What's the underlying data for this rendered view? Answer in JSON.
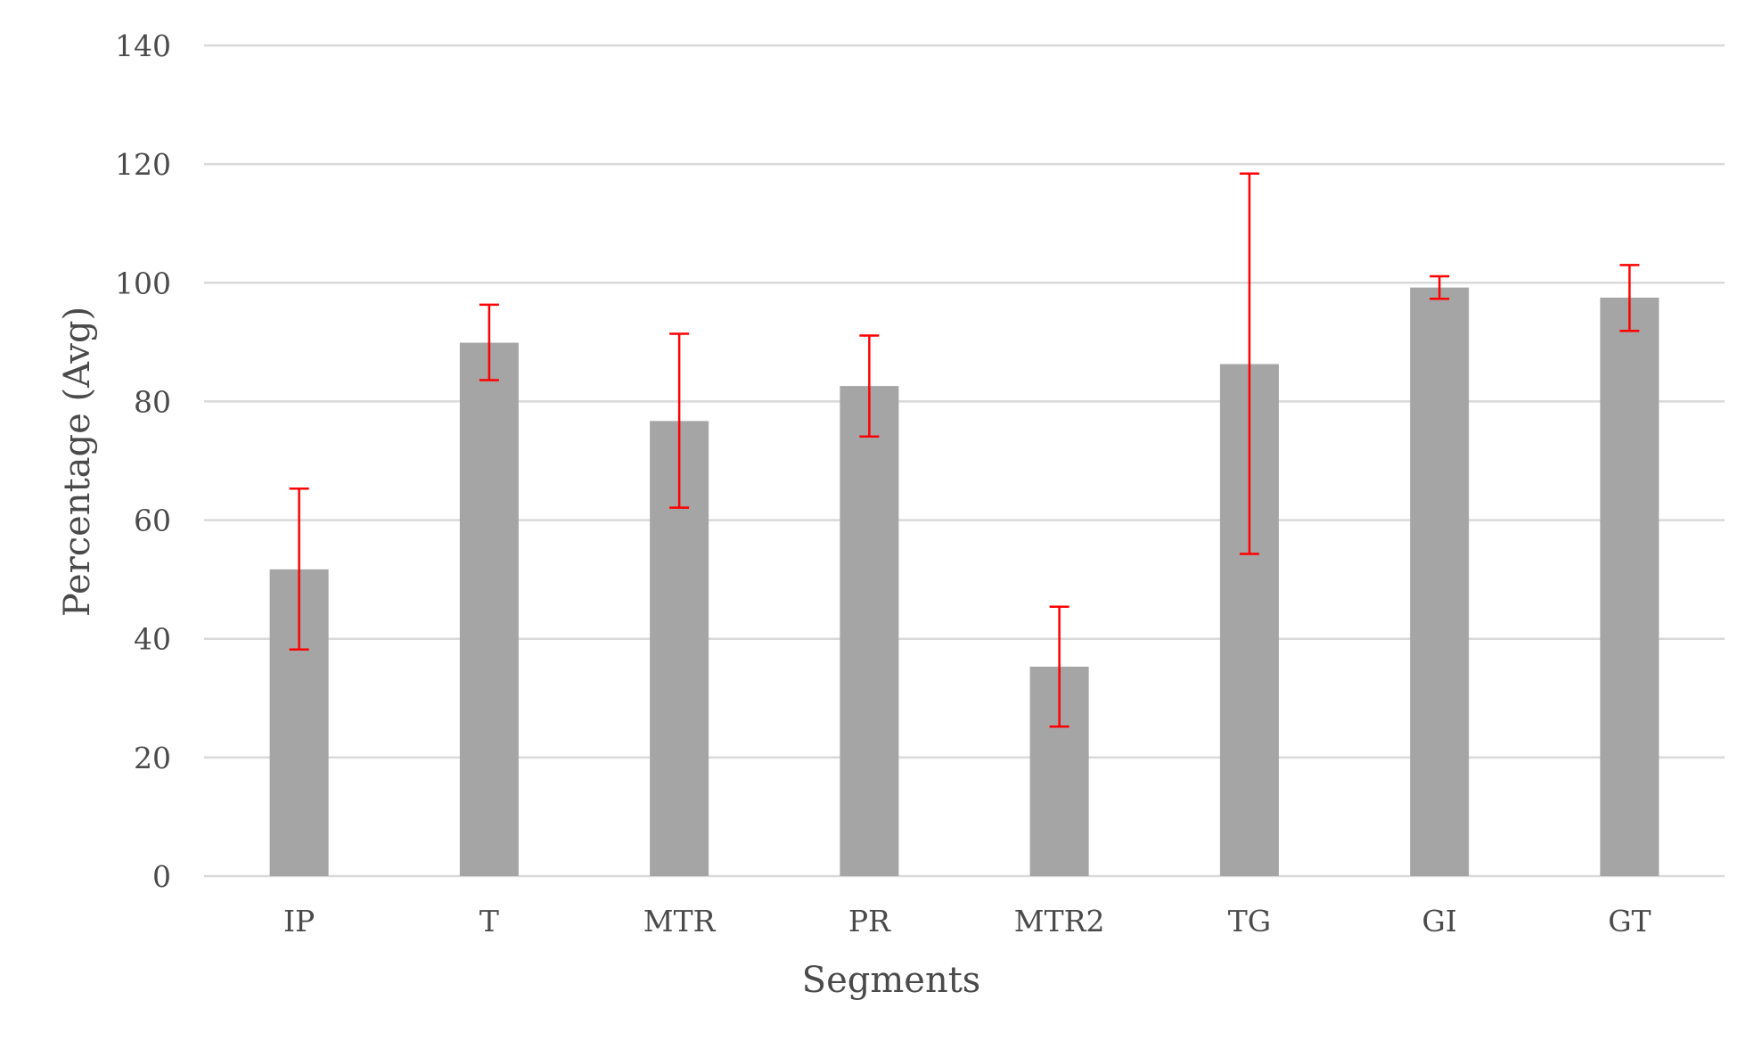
{
  "chart_data": {
    "type": "bar",
    "title": "",
    "xlabel": "Segments",
    "ylabel": "Percentage (Avg)",
    "ylim": [
      0,
      140
    ],
    "yticks": [
      0,
      20,
      40,
      60,
      80,
      100,
      120,
      140
    ],
    "grid": true,
    "legend": "none",
    "colors": {
      "bar": "#a5a5a5",
      "error_bar": "#ff0000",
      "grid": "#d9d9d9",
      "text": "#4a4a4a"
    },
    "categories": [
      "IP",
      "T",
      "MTR",
      "PR",
      "MTR2",
      "TG",
      "GI",
      "GT"
    ],
    "values": [
      51.7,
      89.9,
      76.7,
      82.6,
      35.3,
      86.3,
      99.2,
      97.5
    ],
    "error_bars": [
      {
        "lower": 38.2,
        "upper": 65.3
      },
      {
        "lower": 83.6,
        "upper": 96.3
      },
      {
        "lower": 62.1,
        "upper": 91.4
      },
      {
        "lower": 74.1,
        "upper": 91.1
      },
      {
        "lower": 25.2,
        "upper": 45.4
      },
      {
        "lower": 54.3,
        "upper": 118.4
      },
      {
        "lower": 97.3,
        "upper": 101.1
      },
      {
        "lower": 91.9,
        "upper": 103.0
      }
    ]
  }
}
